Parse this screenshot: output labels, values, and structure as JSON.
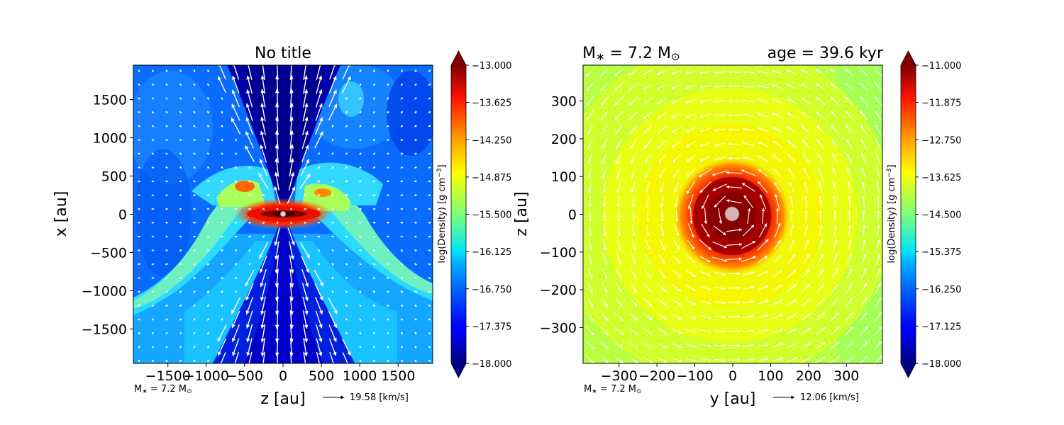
{
  "chart_data": [
    {
      "type": "heatmap",
      "title": "No title",
      "xlabel": "z [au]",
      "ylabel": "x [au]",
      "xlim": [
        -1950,
        1950
      ],
      "ylim": [
        -1950,
        1950
      ],
      "xticks": [
        "−1500",
        "−1000",
        "−500",
        "0",
        "500",
        "1000",
        "1500"
      ],
      "yticks": [
        "1500",
        "1000",
        "500",
        "0",
        "−500",
        "−1000",
        "−1500"
      ],
      "xtick_values": [
        -1500,
        -1000,
        -500,
        0,
        500,
        1000,
        1500
      ],
      "ytick_values": [
        1500,
        1000,
        500,
        0,
        -500,
        -1000,
        -1500
      ],
      "colorbar": {
        "label": "log(Density) [g cm$^{-3}$]",
        "label_text": "log(Density) [g cm",
        "label_sup": "−3",
        "label_end": "]",
        "min": -18.0,
        "max": -13.0,
        "ticks": [
          "−13.000",
          "−13.625",
          "−14.250",
          "−14.875",
          "−15.500",
          "−16.125",
          "−16.750",
          "−17.375",
          "−18.000"
        ],
        "tick_values": [
          -13.0,
          -13.625,
          -14.25,
          -14.875,
          -15.5,
          -16.125,
          -16.75,
          -17.375,
          -18.0
        ],
        "colormap": "jet"
      },
      "mass_label": "M* = 7.2 M⊙",
      "mass_label_prefix": "M",
      "mass_label_sub": "∗",
      "mass_label_mid": " = 7.2 M",
      "mass_label_sun": "⊙",
      "velocity_key": "19.58 [km/s]",
      "star_marker_color": "#d9d9d9"
    },
    {
      "type": "heatmap",
      "title_left": "M∗ = 7.2 M⊙",
      "title_left_prefix": "M",
      "title_left_sub": "∗",
      "title_left_mid": " = 7.2 M",
      "title_left_sun": "⊙",
      "title_right": "age = 39.6 kyr",
      "xlabel": "y [au]",
      "ylabel": "z [au]",
      "xlim": [
        -395,
        395
      ],
      "ylim": [
        -395,
        395
      ],
      "xticks": [
        "−300",
        "−200",
        "−100",
        "0",
        "100",
        "200",
        "300"
      ],
      "yticks": [
        "300",
        "200",
        "100",
        "0",
        "−100",
        "−200",
        "−300"
      ],
      "xtick_values": [
        -300,
        -200,
        -100,
        0,
        100,
        200,
        300
      ],
      "ytick_values": [
        300,
        200,
        100,
        0,
        -100,
        -200,
        -300
      ],
      "colorbar": {
        "label": "log(Density) [g cm$^{-3}$]",
        "label_text": "log(Density) [g cm",
        "label_sup": "−3",
        "label_end": "]",
        "min": -18.0,
        "max": -11.0,
        "ticks": [
          "−11.000",
          "−11.875",
          "−12.750",
          "−13.625",
          "−14.500",
          "−15.375",
          "−16.250",
          "−17.125",
          "−18.000"
        ],
        "tick_values": [
          -11.0,
          -11.875,
          -12.75,
          -13.625,
          -14.5,
          -15.375,
          -16.25,
          -17.125,
          -18.0
        ],
        "colormap": "jet"
      },
      "mass_label": "M* = 7.2 M⊙",
      "mass_label_prefix": "M",
      "mass_label_sub": "∗",
      "mass_label_mid": " = 7.2 M",
      "mass_label_sun": "⊙",
      "velocity_key": "12.06 [km/s]",
      "star_marker_color": "#d9b3b3"
    }
  ]
}
